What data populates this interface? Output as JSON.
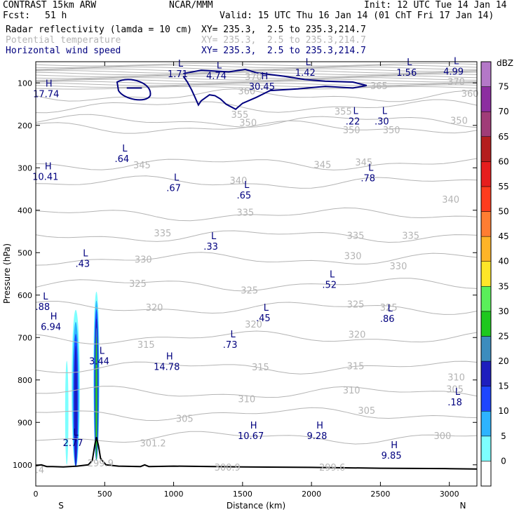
{
  "header": {
    "model": "CONTRAST 15km ARW",
    "org": "NCAR/MMM",
    "init": "Init: 12 UTC Tue 14 Jan 14",
    "fcst_label": "Fcst:",
    "fcst_value": "51 h",
    "valid": "Valid: 15 UTC Thu 16 Jan 14 (01 ChT Fri 17 Jan 14)",
    "fields": [
      {
        "name": "Radar reflectivity (lamda = 10 cm)",
        "xy": "XY= 235.3,  2.5 to 235.3,214.7",
        "color": "#000000"
      },
      {
        "name": "Potential temperature",
        "xy": "XY= 235.3,  2.5 to 235.3,214.7",
        "color": "#b4b4b4"
      },
      {
        "name": "Horizontal wind speed",
        "xy": "XY= 235.3,  2.5 to 235.3,214.7",
        "color": "#00007f"
      }
    ]
  },
  "chart_data": {
    "type": "cross-section",
    "xlabel": "Distance (km)",
    "ylabel": "Pressure (hPa)",
    "xlim": [
      0,
      3200
    ],
    "ylim": [
      1050,
      50
    ],
    "x_ticks": [
      0,
      500,
      1000,
      1500,
      2000,
      2500,
      3000
    ],
    "y_ticks": [
      100,
      200,
      300,
      400,
      500,
      600,
      700,
      800,
      900,
      1000
    ],
    "x_end_labels": {
      "left": "S",
      "right": "N"
    },
    "colorbar": {
      "unit": "dBZ",
      "levels": [
        0,
        5,
        10,
        15,
        20,
        25,
        30,
        35,
        40,
        45,
        50,
        55,
        60,
        65,
        70,
        75
      ],
      "colors": [
        "#ffffff",
        "#7dffff",
        "#2db4ff",
        "#1e46ff",
        "#1e1ebe",
        "#3c8cbe",
        "#1ec81e",
        "#5aef5a",
        "#ffe628",
        "#ffb428",
        "#ff7d32",
        "#ff3c1e",
        "#e61e1e",
        "#b41e1e",
        "#a03c78",
        "#8c2da0",
        "#b478c8"
      ]
    },
    "theta_isentropes": [
      {
        "label": "370",
        "x": 1580,
        "p": 86
      },
      {
        "label": "370",
        "x": 3050,
        "p": 98
      },
      {
        "label": "365",
        "x": 2490,
        "p": 108
      },
      {
        "label": "360",
        "x": 1530,
        "p": 120
      },
      {
        "label": "360",
        "x": 3150,
        "p": 126
      },
      {
        "label": "355",
        "x": 1480,
        "p": 176
      },
      {
        "label": "355",
        "x": 2230,
        "p": 168
      },
      {
        "label": "350",
        "x": 1540,
        "p": 195
      },
      {
        "label": "350",
        "x": 2290,
        "p": 212
      },
      {
        "label": "350",
        "x": 2580,
        "p": 212
      },
      {
        "label": "350",
        "x": 3070,
        "p": 190
      },
      {
        "label": "345",
        "x": 770,
        "p": 295
      },
      {
        "label": "345",
        "x": 2080,
        "p": 294
      },
      {
        "label": "345",
        "x": 2380,
        "p": 288
      },
      {
        "label": "340",
        "x": 1470,
        "p": 331
      },
      {
        "label": "340",
        "x": 3010,
        "p": 376
      },
      {
        "label": "335",
        "x": 920,
        "p": 455
      },
      {
        "label": "335",
        "x": 1520,
        "p": 406
      },
      {
        "label": "335",
        "x": 2320,
        "p": 461
      },
      {
        "label": "335",
        "x": 2720,
        "p": 461
      },
      {
        "label": "330",
        "x": 780,
        "p": 517
      },
      {
        "label": "330",
        "x": 2300,
        "p": 509
      },
      {
        "label": "330",
        "x": 2630,
        "p": 533
      },
      {
        "label": "325",
        "x": 740,
        "p": 574
      },
      {
        "label": "325",
        "x": 1550,
        "p": 590
      },
      {
        "label": "325",
        "x": 2320,
        "p": 623
      },
      {
        "label": "325",
        "x": 2560,
        "p": 630
      },
      {
        "label": "320",
        "x": 860,
        "p": 630
      },
      {
        "label": "320",
        "x": 1580,
        "p": 670
      },
      {
        "label": "320",
        "x": 2330,
        "p": 694
      },
      {
        "label": "315",
        "x": 800,
        "p": 718
      },
      {
        "label": "315",
        "x": 1630,
        "p": 771
      },
      {
        "label": "315",
        "x": 2320,
        "p": 768
      },
      {
        "label": "310",
        "x": 1530,
        "p": 846
      },
      {
        "label": "310",
        "x": 2290,
        "p": 825
      },
      {
        "label": "310",
        "x": 3050,
        "p": 795
      },
      {
        "label": "305",
        "x": 1080,
        "p": 892
      },
      {
        "label": "305",
        "x": 2400,
        "p": 873
      },
      {
        "label": "305",
        "x": 3040,
        "p": 823
      },
      {
        "label": "300",
        "x": 2950,
        "p": 933
      },
      {
        "label": "301.2",
        "x": 850,
        "p": 950
      },
      {
        "label": "300.9",
        "x": 1390,
        "p": 1007
      },
      {
        "label": "299.6",
        "x": 2150,
        "p": 1007
      },
      {
        "label": "299.9",
        "x": 470,
        "p": 997
      },
      {
        "label": ".4",
        "x": 30,
        "p": 1013
      }
    ],
    "wind_extrema": [
      {
        "type": "H",
        "value": "17.74",
        "x": 75,
        "p": 115
      },
      {
        "type": "L",
        "value": "1.71",
        "x": 1030,
        "p": 68
      },
      {
        "type": "L",
        "value": "4.74",
        "x": 1310,
        "p": 72
      },
      {
        "type": "H",
        "value": "30.45",
        "x": 1640,
        "p": 98
      },
      {
        "type": "L",
        "value": "1.42",
        "x": 1955,
        "p": 65
      },
      {
        "type": "L",
        "value": "1.56",
        "x": 2690,
        "p": 65
      },
      {
        "type": "L",
        "value": "4.99",
        "x": 3030,
        "p": 62
      },
      {
        "type": "L",
        "value": ".22",
        "x": 2300,
        "p": 180
      },
      {
        "type": "L",
        "value": ".30",
        "x": 2510,
        "p": 180
      },
      {
        "type": "H",
        "value": "10.41",
        "x": 70,
        "p": 310
      },
      {
        "type": "L",
        "value": ".64",
        "x": 625,
        "p": 268
      },
      {
        "type": "L",
        "value": ".67",
        "x": 1000,
        "p": 337
      },
      {
        "type": "L",
        "value": ".65",
        "x": 1510,
        "p": 354
      },
      {
        "type": "L",
        "value": ".78",
        "x": 2410,
        "p": 314
      },
      {
        "type": "L",
        "value": ".33",
        "x": 1270,
        "p": 475
      },
      {
        "type": "L",
        "value": ".43",
        "x": 340,
        "p": 515
      },
      {
        "type": "L",
        "value": ".88",
        "x": 50,
        "p": 617
      },
      {
        "type": "L",
        "value": ".52",
        "x": 2130,
        "p": 565
      },
      {
        "type": "L",
        "value": ".45",
        "x": 1650,
        "p": 643
      },
      {
        "type": "L",
        "value": ".86",
        "x": 2550,
        "p": 645
      },
      {
        "type": "L",
        "value": ".73",
        "x": 1410,
        "p": 706
      },
      {
        "type": "H",
        "value": "6.94",
        "x": 110,
        "p": 664
      },
      {
        "type": "L",
        "value": "3.44",
        "x": 460,
        "p": 745
      },
      {
        "type": "H",
        "value": "14.78",
        "x": 950,
        "p": 758
      },
      {
        "type": "L",
        "value": ".18",
        "x": 3040,
        "p": 842
      },
      {
        "type": "L",
        "value": "2.77",
        "x": 270,
        "p": 938
      },
      {
        "type": "H",
        "value": "10.67",
        "x": 1560,
        "p": 921
      },
      {
        "type": "H",
        "value": "9.28",
        "x": 2040,
        "p": 921
      },
      {
        "type": "H",
        "value": "9.85",
        "x": 2580,
        "p": 967
      }
    ],
    "reflectivity_cells": [
      {
        "x_center": 290,
        "x_half_width": 30,
        "p_top": 635,
        "p_bottom": 1005,
        "max_dBZ": 20
      },
      {
        "x_center": 440,
        "x_half_width": 22,
        "p_top": 592,
        "p_bottom": 990,
        "max_dBZ": 30
      },
      {
        "x_center": 225,
        "x_half_width": 12,
        "p_top": 755,
        "p_bottom": 1000,
        "max_dBZ": 7
      }
    ],
    "terrain_surface": [
      [
        0,
        1002
      ],
      [
        40,
        1000
      ],
      [
        80,
        1004
      ],
      [
        120,
        1004
      ],
      [
        200,
        1005
      ],
      [
        300,
        1003
      ],
      [
        380,
        1000
      ],
      [
        410,
        990
      ],
      [
        430,
        950
      ],
      [
        440,
        935
      ],
      [
        455,
        955
      ],
      [
        470,
        985
      ],
      [
        510,
        1000
      ],
      [
        600,
        1003
      ],
      [
        760,
        1004
      ],
      [
        790,
        1000
      ],
      [
        820,
        1004
      ],
      [
        1000,
        1003
      ],
      [
        1500,
        1005
      ],
      [
        2000,
        1006
      ],
      [
        2500,
        1008
      ],
      [
        3000,
        1009
      ],
      [
        3200,
        1010
      ]
    ]
  }
}
